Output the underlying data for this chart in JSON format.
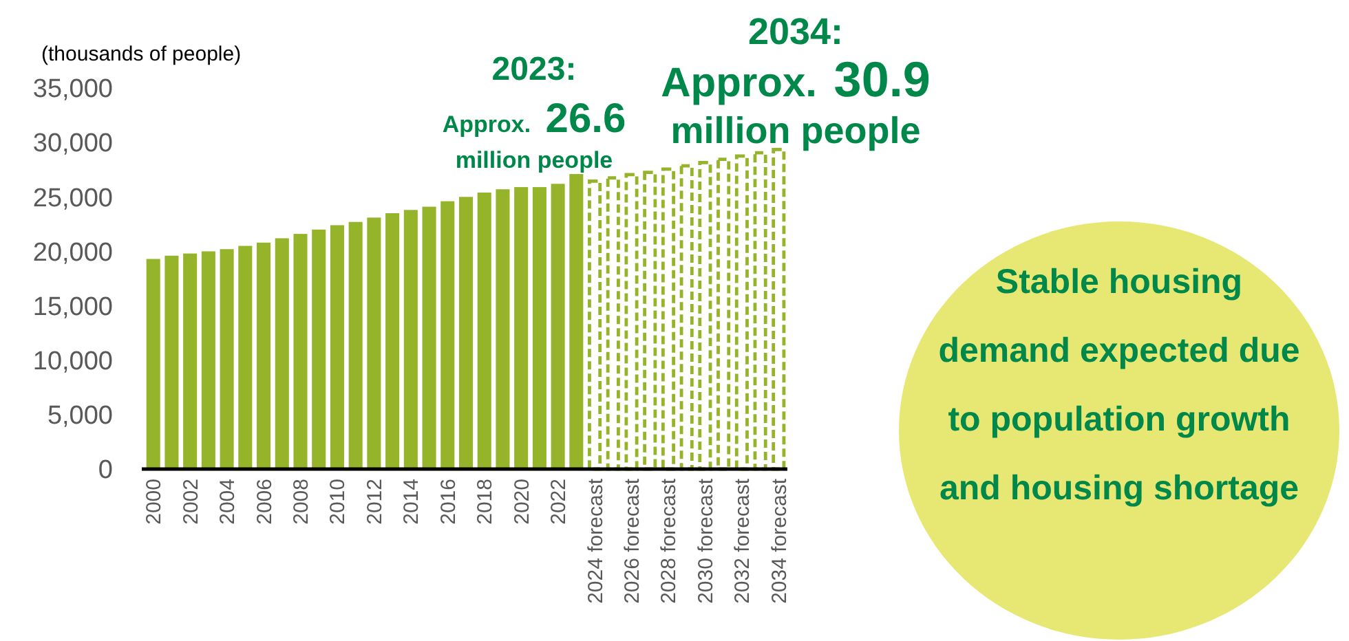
{
  "chart_data": {
    "type": "bar",
    "ylabel": "(thousands of people)",
    "categories": [
      "2000",
      null,
      "2002",
      null,
      "2004",
      null,
      "2006",
      null,
      "2008",
      null,
      "2010",
      null,
      "2012",
      null,
      "2014",
      null,
      "2016",
      null,
      "2018",
      null,
      "2020",
      null,
      "2022",
      null,
      "2024 forecast",
      null,
      "2026 forecast",
      null,
      "2028 forecast",
      null,
      "2030 forecast",
      null,
      "2032 forecast",
      null,
      "2034 forecast"
    ],
    "series": [
      {
        "color": "#95b42a",
        "line_style": "solid",
        "values": [
          19300,
          19600,
          19800,
          20000,
          20200,
          20500,
          20800,
          21200,
          21600,
          22000,
          22400,
          22700,
          23100,
          23500,
          23800,
          24100,
          24600,
          25000,
          25400,
          25700,
          25900,
          25900,
          26200,
          27100,
          null,
          null,
          null,
          null,
          null,
          null,
          null,
          null,
          null,
          null,
          null
        ]
      },
      {
        "color": "#95b42a",
        "line_style": "dashed",
        "values": [
          null,
          null,
          null,
          null,
          null,
          null,
          null,
          null,
          null,
          null,
          null,
          null,
          null,
          null,
          null,
          null,
          null,
          null,
          null,
          null,
          null,
          null,
          null,
          null,
          26600,
          26900,
          27200,
          27400,
          27700,
          28000,
          28300,
          28600,
          28900,
          29200,
          29500
        ]
      }
    ],
    "ylim": [
      0,
      35000
    ],
    "yticks": [
      {
        "value": 0,
        "label": "0"
      },
      {
        "value": 5000,
        "label": "5,000"
      },
      {
        "value": 10000,
        "label": "10,000"
      },
      {
        "value": 15000,
        "label": "15,000"
      },
      {
        "value": 20000,
        "label": "20,000"
      },
      {
        "value": 25000,
        "label": "25,000"
      },
      {
        "value": 30000,
        "label": "30,000"
      },
      {
        "value": 35000,
        "label": "35,000"
      }
    ],
    "grid": false,
    "annotations": [
      "2023:\nApprox. 26.6\nmillion people",
      "2034:\nApprox. 30.9\nmillion people",
      "Stable housing\ndemand expected due\nto population growth\nand housing shortage"
    ]
  }
}
